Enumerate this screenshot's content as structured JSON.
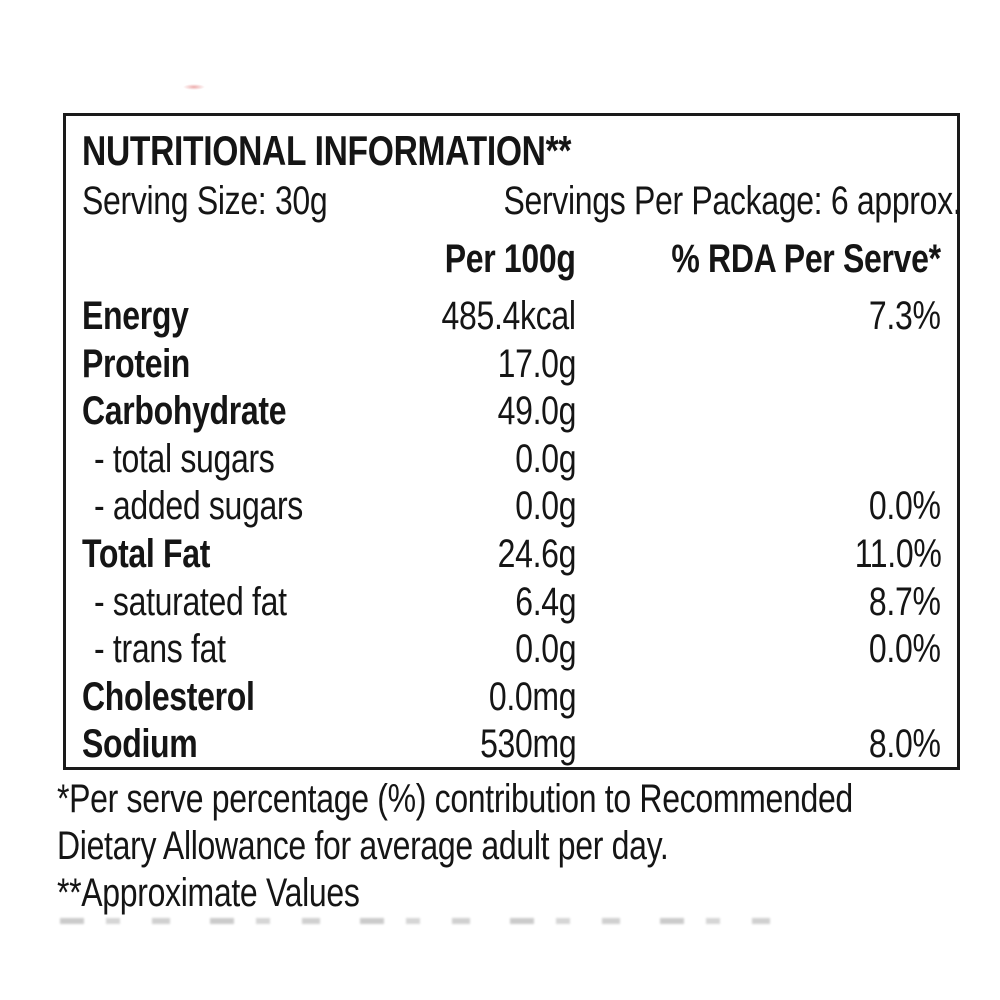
{
  "label": {
    "title": "NUTRITIONAL INFORMATION**",
    "serving_size": "Serving Size: 30g",
    "servings_per_package": "Servings Per Package: 6 approx.",
    "columns": {
      "per_100g": "Per 100g",
      "rda_per_serve": "% RDA Per Serve*"
    },
    "rows": [
      {
        "name": "Energy",
        "bold": true,
        "per_100g": "485.4kcal",
        "rda": "7.3%"
      },
      {
        "name": "Protein",
        "bold": true,
        "per_100g": "17.0g",
        "rda": ""
      },
      {
        "name": "Carbohydrate",
        "bold": true,
        "per_100g": "49.0g",
        "rda": ""
      },
      {
        "name": "- total sugars",
        "bold": false,
        "per_100g": "0.0g",
        "rda": ""
      },
      {
        "name": "- added sugars",
        "bold": false,
        "per_100g": "0.0g",
        "rda": "0.0%"
      },
      {
        "name": "Total Fat",
        "bold": true,
        "per_100g": "24.6g",
        "rda": "11.0%"
      },
      {
        "name": "- saturated fat",
        "bold": false,
        "per_100g": "6.4g",
        "rda": "8.7%"
      },
      {
        "name": "- trans fat",
        "bold": false,
        "per_100g": "0.0g",
        "rda": "0.0%"
      },
      {
        "name": "Cholesterol",
        "bold": true,
        "per_100g": "0.0mg",
        "rda": ""
      },
      {
        "name": "Sodium",
        "bold": true,
        "per_100g": "530mg",
        "rda": "8.0%"
      }
    ],
    "footnotes": [
      "*Per serve percentage (%) contribution to Recommended",
      "Dietary Allowance for average adult per day.",
      "**Approximate Values"
    ],
    "colors": {
      "text": "#151515",
      "border": "#1a1a1a",
      "background": "#ffffff"
    }
  }
}
